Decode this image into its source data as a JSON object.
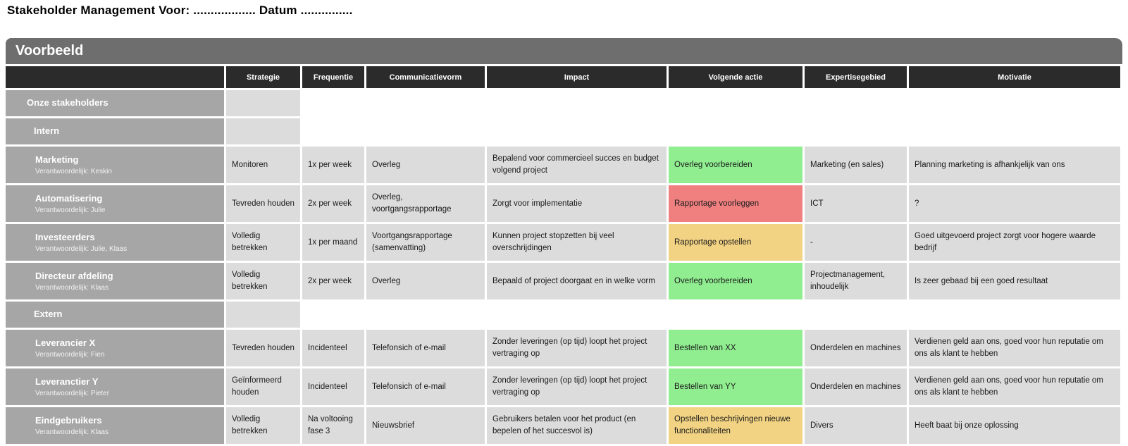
{
  "page": {
    "title": "Stakeholder Management Voor: .................. Datum ...............",
    "section_header": "Voorbeeld"
  },
  "colors": {
    "green": "#90ee90",
    "red": "#f08080",
    "amber": "#f2d383",
    "header_bg": "#2b2b2b",
    "bar_bg": "#6e6e6e",
    "stakeholder_bg": "#a6a6a6",
    "cell_bg": "#dcdcdc"
  },
  "table": {
    "columns": [
      "",
      "Strategie",
      "Frequentie",
      "Communicatievorm",
      "Impact",
      "Volgende actie",
      "Expertisegebied",
      "Motivatie"
    ],
    "rows": [
      {
        "type": "section",
        "level": 1,
        "name": "Onze stakeholders"
      },
      {
        "type": "section",
        "level": 2,
        "name": "Intern"
      },
      {
        "type": "item",
        "name": "Marketing",
        "responsible": "Verantwoordelijk: Keskin",
        "cells": [
          "Monitoren",
          "1x per week",
          "Overleg",
          "Bepalend voor commercieel succes en budget volgend project",
          "Overleg voorbereiden",
          "Marketing (en sales)",
          "Planning marketing is afhankjelijk van ons"
        ],
        "action_color": "green"
      },
      {
        "type": "item",
        "name": "Automatisering",
        "responsible": "Verantwoordelijk: Julie",
        "cells": [
          "Tevreden houden",
          "2x per week",
          "Overleg, voortgangsrapportage",
          "Zorgt voor implementatie",
          "Rapportage voorleggen",
          "ICT",
          "?"
        ],
        "action_color": "red"
      },
      {
        "type": "item",
        "name": "Investeerders",
        "responsible": "Verantwoordelijk: Julie, Klaas",
        "cells": [
          "Volledig betrekken",
          "1x per maand",
          "Voortgangsrapportage (samenvatting)",
          "Kunnen project stopzetten bij veel overschrijdingen",
          "Rapportage opstellen",
          "-",
          "Goed uitgevoerd project zorgt voor hogere waarde bedrijf"
        ],
        "action_color": "amber"
      },
      {
        "type": "item",
        "name": "Directeur afdeling",
        "responsible": "Verantwoordelijk: Klaas",
        "cells": [
          "Volledig betrekken",
          "2x per week",
          "Overleg",
          "Bepaald of project doorgaat en in welke vorm",
          "Overleg voorbereiden",
          "Projectmanagement, inhoudelijk",
          "Is zeer gebaad bij een goed resultaat"
        ],
        "action_color": "green"
      },
      {
        "type": "section",
        "level": 2,
        "name": "Extern"
      },
      {
        "type": "item",
        "name": "Leverancier X",
        "responsible": "Verantwoordelijk: Fien",
        "cells": [
          "Tevreden houden",
          "Incidenteel",
          "Telefonsich of e-mail",
          "Zonder leveringen (op tijd) loopt het project vertraging op",
          "Bestellen van XX",
          "Onderdelen en machines",
          "Verdienen geld aan ons, goed voor hun reputatie om ons als klant te hebben"
        ],
        "action_color": "green"
      },
      {
        "type": "item",
        "name": "Leveranctier Y",
        "responsible": "Verantwoordelijk: Pieter",
        "cells": [
          "Geïnformeerd houden",
          "Incidenteel",
          "Telefonsich of e-mail",
          "Zonder leveringen (op tijd) loopt het project vertraging op",
          "Bestellen van YY",
          "Onderdelen en machines",
          "Verdienen geld aan ons, goed voor hun reputatie om ons als klant te hebben"
        ],
        "action_color": "green"
      },
      {
        "type": "item",
        "name": "Eindgebruikers",
        "responsible": "Verantwoordelijk: Klaas",
        "cells": [
          "Volledig betrekken",
          "Na voltooing fase 3",
          "Nieuwsbrief",
          "Gebruikers betalen voor het product (en bepelen of het succesvol is)",
          "Opstellen beschrijvingen nieuwe functionaliteiten",
          "Divers",
          "Heeft baat bij onze oplossing"
        ],
        "action_color": "amber"
      }
    ]
  }
}
